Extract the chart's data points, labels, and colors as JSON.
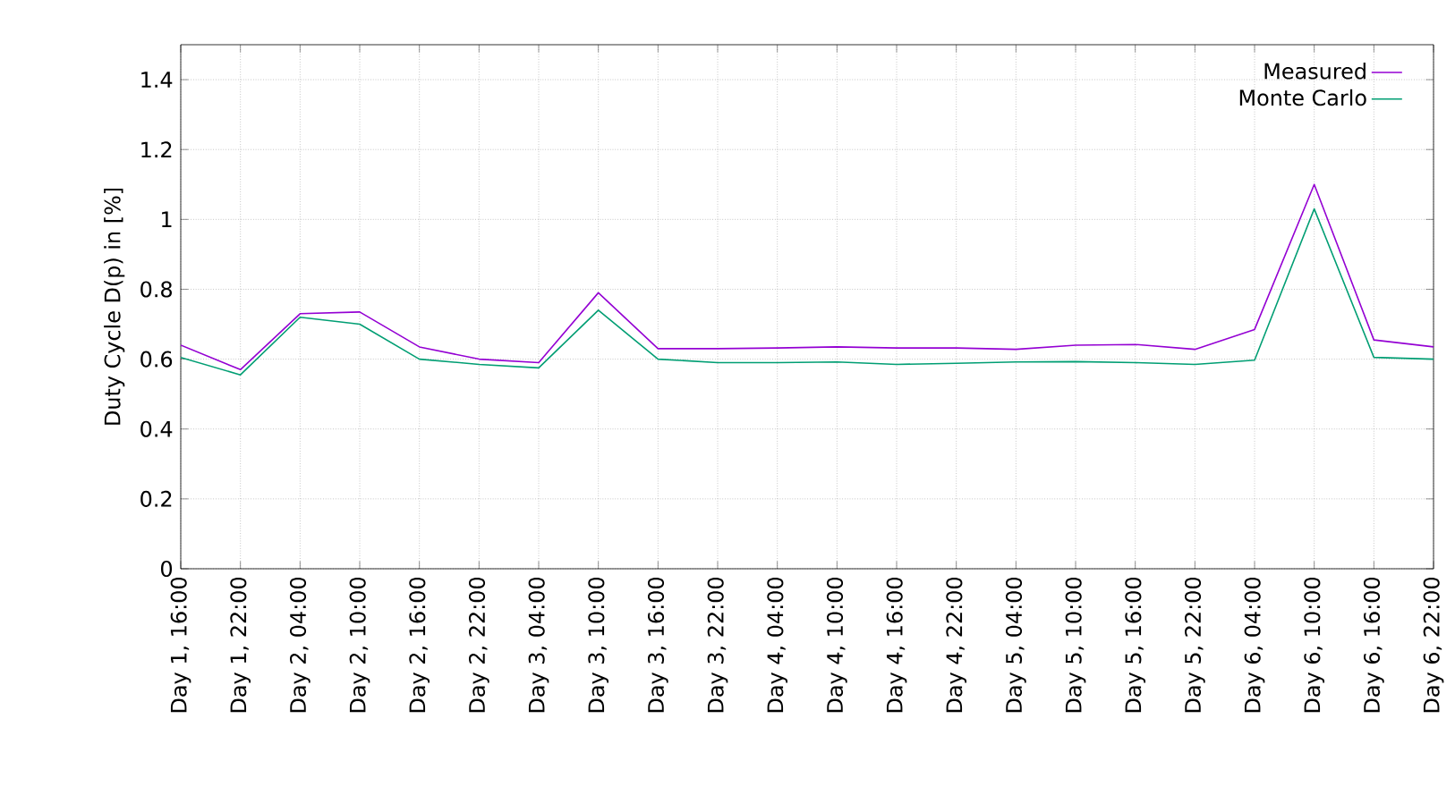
{
  "chart_data": {
    "type": "line",
    "ylabel": "Duty Cycle D(p) in [%]",
    "categories": [
      "Day 1, 16:00",
      "Day 1, 22:00",
      "Day 2, 04:00",
      "Day 2, 10:00",
      "Day 2, 16:00",
      "Day 2, 22:00",
      "Day 3, 04:00",
      "Day 3, 10:00",
      "Day 3, 16:00",
      "Day 3, 22:00",
      "Day 4, 04:00",
      "Day 4, 10:00",
      "Day 4, 16:00",
      "Day 4, 22:00",
      "Day 5, 04:00",
      "Day 5, 10:00",
      "Day 5, 16:00",
      "Day 5, 22:00",
      "Day 6, 04:00",
      "Day 6, 10:00",
      "Day 6, 16:00",
      "Day 6, 22:00"
    ],
    "series": [
      {
        "name": "Measured",
        "color": "#9400d3",
        "values": [
          0.64,
          0.57,
          0.73,
          0.735,
          0.635,
          0.6,
          0.59,
          0.79,
          0.63,
          0.63,
          0.632,
          0.635,
          0.632,
          0.632,
          0.628,
          0.64,
          0.642,
          0.628,
          0.685,
          1.1,
          0.655,
          0.635
        ]
      },
      {
        "name": "Monte Carlo",
        "color": "#009e73",
        "values": [
          0.605,
          0.555,
          0.72,
          0.7,
          0.6,
          0.585,
          0.575,
          0.74,
          0.6,
          0.59,
          0.59,
          0.592,
          0.585,
          0.588,
          0.592,
          0.593,
          0.59,
          0.585,
          0.597,
          1.03,
          0.605,
          0.6
        ]
      }
    ],
    "ylim": [
      0,
      1.5
    ],
    "yticks": [
      0,
      0.2,
      0.4,
      0.6,
      0.8,
      1,
      1.2,
      1.4
    ],
    "grid": true,
    "legend": "top right",
    "marker": "none",
    "line_style": "solid"
  }
}
